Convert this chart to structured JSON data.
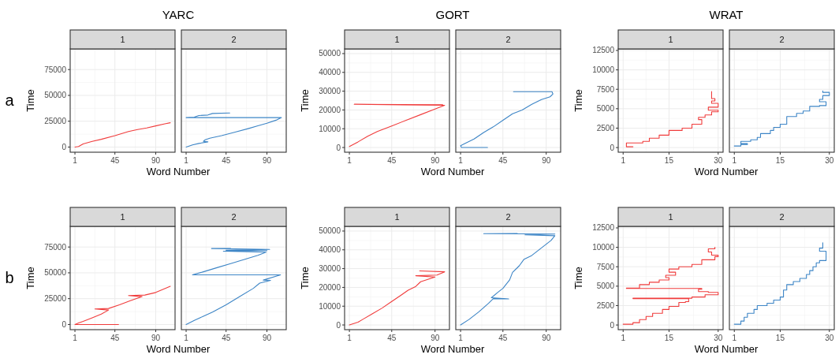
{
  "chart_data": [
    {
      "type": "line",
      "title": "1",
      "annotations": [
        "YARC",
        "a"
      ],
      "xlabel": "Word Number",
      "ylabel": "Time",
      "xlim": [
        -4.25,
        111.25
      ],
      "ylim": [
        -5000,
        95000
      ],
      "xticks": [
        1,
        45,
        90
      ],
      "yticks": [
        0,
        25000,
        50000,
        75000
      ],
      "grid": true,
      "series": [
        {
          "color": "#f03c3c",
          "x": [
            1,
            5,
            10,
            20,
            30,
            45,
            60,
            70,
            80,
            90,
            100,
            106
          ],
          "values": [
            0,
            500,
            3000,
            5500,
            7500,
            11000,
            15000,
            17000,
            18500,
            20500,
            22500,
            23500
          ]
        }
      ]
    },
    {
      "type": "line",
      "title": "2",
      "xlim": [
        -4.25,
        111.25
      ],
      "ylim": [
        -5000,
        95000
      ],
      "xticks": [
        1,
        45,
        90
      ],
      "yticks": [
        0,
        25000,
        50000,
        75000
      ],
      "grid": true,
      "tick_labels": "x",
      "series": [
        {
          "color": "#3d85c6",
          "x": [
            1,
            8,
            15,
            25,
            20,
            22,
            27,
            40,
            55,
            70,
            80,
            90,
            100,
            106,
            1,
            10,
            15,
            25,
            30,
            49
          ],
          "values": [
            0,
            2000,
            3500,
            5000,
            5500,
            7000,
            8500,
            11000,
            14500,
            18000,
            20500,
            23000,
            26000,
            28500,
            28500,
            29000,
            30500,
            31000,
            32500,
            33000
          ]
        }
      ]
    },
    {
      "type": "line",
      "title": "1",
      "annotations": [
        "GORT"
      ],
      "xlabel": "Word Number",
      "ylabel": "Time",
      "xlim": [
        -4,
        105
      ],
      "ylim": [
        -2500,
        52500
      ],
      "xticks": [
        1,
        45,
        90
      ],
      "yticks": [
        0,
        10000,
        20000,
        30000,
        40000,
        50000
      ],
      "grid": true,
      "series": [
        {
          "color": "#f03c3c",
          "x": [
            1,
            10,
            20,
            30,
            45,
            60,
            75,
            90,
            100,
            6,
            98,
            52
          ],
          "values": [
            500,
            3000,
            6000,
            8500,
            11500,
            14500,
            17500,
            20500,
            22500,
            23000,
            22800,
            22700
          ]
        }
      ]
    },
    {
      "type": "line",
      "title": "2",
      "xlim": [
        -4,
        105
      ],
      "ylim": [
        -2500,
        52500
      ],
      "xticks": [
        1,
        45,
        90
      ],
      "yticks": [
        0,
        10000,
        20000,
        30000,
        40000,
        50000
      ],
      "grid": true,
      "tick_labels": "x",
      "series": [
        {
          "color": "#3d85c6",
          "x": [
            29,
            2,
            1,
            5,
            15,
            25,
            35,
            45,
            55,
            65,
            75,
            85,
            94,
            97,
            96,
            56
          ],
          "values": [
            0,
            0,
            1000,
            2000,
            4500,
            8000,
            11000,
            14500,
            18000,
            20000,
            23000,
            25500,
            27000,
            28500,
            29700,
            29700
          ]
        }
      ]
    },
    {
      "type": "step",
      "title": "1",
      "annotations": [
        "WRAT"
      ],
      "xlabel": "Word Number",
      "ylabel": "Time",
      "xlim": [
        -0.5,
        31.5
      ],
      "ylim": [
        -600,
        12700
      ],
      "xticks": [
        1,
        15,
        30
      ],
      "yticks": [
        0,
        2500,
        5000,
        7500,
        10000,
        12500
      ],
      "grid": true,
      "series": [
        {
          "color": "#f03c3c",
          "x": [
            4,
            2,
            7,
            9,
            12,
            15,
            19,
            22,
            25,
            24,
            26,
            28,
            30,
            27,
            30,
            28,
            29,
            28,
            28
          ],
          "values": [
            100,
            600,
            800,
            1200,
            1600,
            2200,
            2500,
            3000,
            3600,
            3900,
            4200,
            4600,
            4800,
            5200,
            5700,
            6000,
            6300,
            6900,
            7200
          ]
        }
      ]
    },
    {
      "type": "step",
      "title": "2",
      "xlim": [
        -0.5,
        31.5
      ],
      "ylim": [
        -600,
        12700
      ],
      "xticks": [
        1,
        15,
        30
      ],
      "yticks": [
        0,
        2500,
        5000,
        7500,
        10000,
        12500
      ],
      "grid": true,
      "tick_labels": "x",
      "series": [
        {
          "color": "#3d85c6",
          "x": [
            1,
            3,
            5,
            3,
            6,
            8,
            9,
            12,
            13,
            15,
            17,
            17,
            20,
            22,
            24,
            27,
            29,
            27,
            28,
            30,
            28
          ],
          "values": [
            200,
            400,
            500,
            800,
            1000,
            1300,
            1800,
            2200,
            2600,
            3000,
            3300,
            4000,
            4400,
            4700,
            5300,
            5400,
            5900,
            6200,
            6700,
            7100,
            7300
          ]
        }
      ]
    },
    {
      "type": "line",
      "title": "1",
      "annotations": [
        "b"
      ],
      "xlabel": "Word Number",
      "ylabel": "Time",
      "xlim": [
        -4.25,
        111.25
      ],
      "ylim": [
        -5000,
        95000
      ],
      "xticks": [
        1,
        45,
        90
      ],
      "yticks": [
        0,
        25000,
        50000,
        75000
      ],
      "grid": true,
      "series": [
        {
          "color": "#f03c3c",
          "x": [
            49,
            1,
            5,
            10,
            20,
            30,
            38,
            23,
            38,
            50,
            62,
            75,
            60,
            78,
            90,
            106
          ],
          "values": [
            0,
            0,
            1500,
            3000,
            6500,
            10000,
            14000,
            15000,
            15500,
            19000,
            23000,
            27000,
            28000,
            28500,
            31000,
            37000
          ]
        }
      ]
    },
    {
      "type": "line",
      "title": "2",
      "xlim": [
        -4.25,
        111.25
      ],
      "ylim": [
        -5000,
        95000
      ],
      "xticks": [
        1,
        45,
        90
      ],
      "yticks": [
        0,
        25000,
        50000,
        75000
      ],
      "grid": true,
      "tick_labels": "x",
      "series": [
        {
          "color": "#3d85c6",
          "x": [
            1,
            10,
            20,
            30,
            45,
            60,
            75,
            82,
            94,
            86,
            105,
            8,
            20,
            35,
            50,
            65,
            80,
            89,
            42,
            90,
            45,
            93,
            29,
            50
          ],
          "values": [
            0,
            4000,
            8000,
            12000,
            19000,
            27000,
            35000,
            40000,
            42700,
            43000,
            48000,
            48000,
            51000,
            55000,
            59000,
            63000,
            67000,
            70000,
            71000,
            71500,
            71800,
            72700,
            73500,
            73500
          ]
        }
      ]
    },
    {
      "type": "line",
      "title": "1",
      "xlabel": "Word Number",
      "ylabel": "Time",
      "xlim": [
        -4,
        105
      ],
      "ylim": [
        -2500,
        52500
      ],
      "xticks": [
        1,
        45,
        90
      ],
      "yticks": [
        0,
        10000,
        20000,
        30000,
        40000,
        50000
      ],
      "grid": true,
      "series": [
        {
          "color": "#f03c3c",
          "x": [
            1,
            10,
            15,
            25,
            35,
            45,
            55,
            62,
            70,
            75,
            90,
            70,
            92,
            100,
            74
          ],
          "values": [
            0,
            1500,
            3000,
            6000,
            9000,
            12500,
            16000,
            18500,
            20500,
            23000,
            25500,
            26200,
            26600,
            28300,
            28800
          ]
        }
      ]
    },
    {
      "type": "line",
      "title": "2",
      "xlim": [
        -4,
        105
      ],
      "ylim": [
        -2500,
        52500
      ],
      "xticks": [
        1,
        45,
        90
      ],
      "yticks": [
        0,
        10000,
        20000,
        30000,
        40000,
        50000
      ],
      "grid": true,
      "tick_labels": "x",
      "series": [
        {
          "color": "#3d85c6",
          "x": [
            1,
            10,
            20,
            30,
            35,
            51,
            33,
            40,
            45,
            52,
            55,
            62,
            67,
            75,
            85,
            95,
            99,
            68,
            99,
            25,
            60
          ],
          "values": [
            0,
            3000,
            7000,
            11500,
            14000,
            13900,
            14500,
            17500,
            19500,
            24000,
            28000,
            31500,
            35000,
            37000,
            41000,
            45000,
            47500,
            48000,
            48400,
            48600,
            48700
          ]
        }
      ]
    },
    {
      "type": "step",
      "title": "1",
      "xlabel": "Word Number",
      "ylabel": "Time",
      "xlim": [
        -0.5,
        31.5
      ],
      "ylim": [
        -600,
        12700
      ],
      "xticks": [
        1,
        15,
        30
      ],
      "yticks": [
        0,
        2500,
        5000,
        7500,
        10000,
        12500
      ],
      "grid": true,
      "series": [
        {
          "color": "#f03c3c",
          "x": [
            1,
            4,
            6,
            8,
            10,
            13,
            15,
            18,
            20,
            21,
            4,
            22,
            26,
            30,
            27,
            24,
            25,
            2,
            6,
            9,
            12,
            15,
            14,
            17,
            15,
            18,
            22,
            25,
            29,
            30,
            28,
            27,
            29
          ],
          "values": [
            100,
            300,
            700,
            1100,
            1500,
            2000,
            2400,
            2900,
            3000,
            3400,
            3450,
            3600,
            3900,
            4200,
            4300,
            4600,
            4700,
            4750,
            5200,
            5500,
            5800,
            6100,
            6400,
            6800,
            7200,
            7500,
            7800,
            8400,
            8800,
            9000,
            9400,
            9800,
            10000
          ]
        }
      ]
    },
    {
      "type": "step",
      "title": "2",
      "xlim": [
        -0.5,
        31.5
      ],
      "ylim": [
        -600,
        12700
      ],
      "xticks": [
        1,
        15,
        30
      ],
      "yticks": [
        0,
        2500,
        5000,
        7500,
        10000,
        12500
      ],
      "grid": true,
      "tick_labels": "x",
      "series": [
        {
          "color": "#3d85c6",
          "x": [
            1,
            3,
            4,
            5,
            7,
            8,
            11,
            13,
            15,
            16,
            16,
            17,
            19,
            21,
            23,
            24,
            25,
            26,
            27,
            29,
            29,
            27,
            28,
            28
          ],
          "values": [
            100,
            500,
            1000,
            1500,
            2000,
            2500,
            2800,
            3200,
            3600,
            4000,
            4500,
            5200,
            5600,
            6000,
            6500,
            7000,
            7500,
            8000,
            8300,
            9000,
            9500,
            9900,
            10200,
            10600
          ]
        }
      ]
    }
  ]
}
